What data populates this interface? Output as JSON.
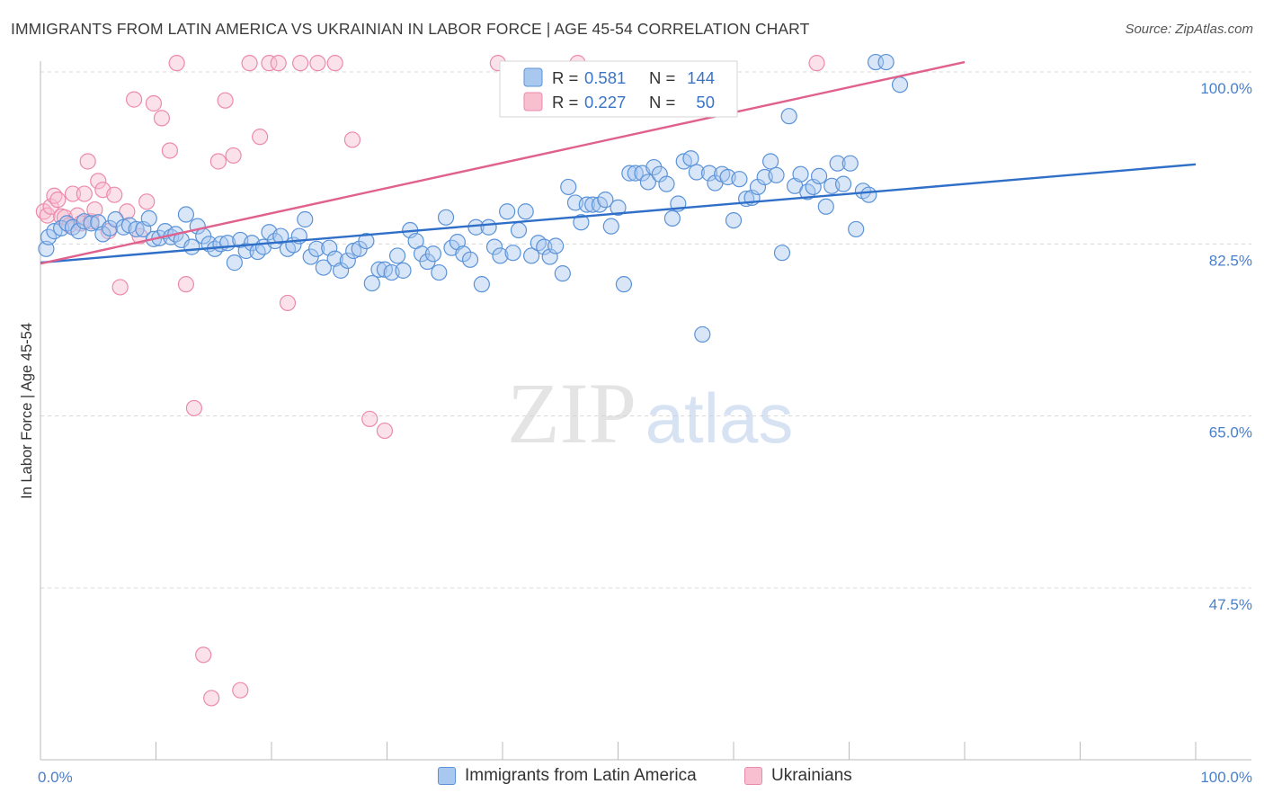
{
  "title": "IMMIGRANTS FROM LATIN AMERICA VS UKRAINIAN IN LABOR FORCE | AGE 45-54 CORRELATION CHART",
  "source": "Source: ZipAtlas.com",
  "watermark": {
    "zip": "ZIP",
    "atlas": "atlas"
  },
  "colors": {
    "blue_fill": "#a9c8f0",
    "blue_stroke": "#5b93d8",
    "blue_line": "#2f6fc8",
    "pink_fill": "#f7bfd0",
    "pink_stroke": "#ec8aab",
    "pink_line": "#e0608e",
    "tick_label": "#4a7fcc",
    "grid": "#d8d8d8",
    "axis": "#bbbbbb"
  },
  "stats_box": {
    "rows": [
      {
        "r_label": "R =",
        "r_value": "0.581",
        "n_label": "N =",
        "n_value": "144"
      },
      {
        "r_label": "R =",
        "r_value": "0.227",
        "n_label": "N =",
        "n_value": "50"
      }
    ]
  },
  "legend": {
    "items": [
      {
        "label": "Immigrants from Latin America"
      },
      {
        "label": "Ukrainians"
      }
    ]
  },
  "chart_data": {
    "type": "scatter",
    "title": "IMMIGRANTS FROM LATIN AMERICA VS UKRAINIAN IN LABOR FORCE | AGE 45-54 CORRELATION CHART",
    "xlabel": "",
    "ylabel": "In Labor Force | Age 45-54",
    "xlim": [
      0,
      100
    ],
    "ylim": [
      30,
      102
    ],
    "x_tick_labels": [
      "0.0%",
      "100.0%"
    ],
    "y_ticks": [
      47.5,
      65.0,
      82.5,
      100.0
    ],
    "y_tick_labels": [
      "47.5%",
      "65.0%",
      "82.5%",
      "100.0%"
    ],
    "grid": true,
    "legend_position": "bottom-center",
    "series": [
      {
        "name": "Immigrants from Latin America",
        "color": "#a9c8f0",
        "r": 0.581,
        "n": 144,
        "trend": {
          "x": [
            0,
            100
          ],
          "y": [
            80.6,
            90.6
          ]
        },
        "points": [
          [
            0.5,
            82.0
          ],
          [
            0.7,
            83.2
          ],
          [
            1.2,
            83.8
          ],
          [
            1.8,
            84.1
          ],
          [
            2.3,
            84.6
          ],
          [
            2.8,
            84.2
          ],
          [
            3.3,
            83.8
          ],
          [
            3.8,
            84.8
          ],
          [
            4.4,
            84.6
          ],
          [
            5.0,
            84.7
          ],
          [
            5.4,
            83.5
          ],
          [
            6.0,
            84.1
          ],
          [
            6.5,
            85.0
          ],
          [
            7.2,
            84.2
          ],
          [
            7.7,
            84.4
          ],
          [
            8.3,
            84.0
          ],
          [
            8.9,
            84.0
          ],
          [
            9.4,
            85.1
          ],
          [
            9.8,
            83.0
          ],
          [
            10.3,
            83.1
          ],
          [
            10.8,
            83.8
          ],
          [
            11.3,
            83.2
          ],
          [
            11.7,
            83.5
          ],
          [
            12.2,
            82.9
          ],
          [
            12.6,
            85.5
          ],
          [
            13.1,
            82.2
          ],
          [
            13.6,
            84.3
          ],
          [
            14.1,
            83.3
          ],
          [
            14.6,
            82.5
          ],
          [
            15.1,
            82.0
          ],
          [
            15.6,
            82.5
          ],
          [
            16.2,
            82.6
          ],
          [
            16.8,
            80.6
          ],
          [
            17.3,
            82.9
          ],
          [
            17.8,
            81.8
          ],
          [
            18.3,
            82.6
          ],
          [
            18.8,
            81.7
          ],
          [
            19.3,
            82.2
          ],
          [
            19.8,
            83.7
          ],
          [
            20.3,
            82.8
          ],
          [
            20.8,
            83.3
          ],
          [
            21.4,
            82.0
          ],
          [
            21.9,
            82.4
          ],
          [
            22.4,
            83.3
          ],
          [
            22.9,
            85.0
          ],
          [
            23.4,
            81.2
          ],
          [
            23.9,
            82.0
          ],
          [
            24.5,
            80.1
          ],
          [
            25.0,
            82.1
          ],
          [
            25.5,
            81.0
          ],
          [
            26.0,
            79.8
          ],
          [
            26.6,
            80.8
          ],
          [
            27.1,
            81.8
          ],
          [
            27.6,
            82.0
          ],
          [
            28.2,
            82.8
          ],
          [
            28.7,
            78.5
          ],
          [
            29.3,
            79.9
          ],
          [
            29.8,
            79.9
          ],
          [
            30.4,
            79.6
          ],
          [
            30.9,
            81.3
          ],
          [
            31.4,
            79.8
          ],
          [
            32.0,
            83.9
          ],
          [
            32.5,
            82.8
          ],
          [
            33.0,
            81.5
          ],
          [
            33.5,
            80.7
          ],
          [
            34.0,
            81.5
          ],
          [
            34.5,
            79.6
          ],
          [
            35.1,
            85.2
          ],
          [
            35.6,
            82.1
          ],
          [
            36.1,
            82.7
          ],
          [
            36.6,
            81.5
          ],
          [
            37.2,
            80.9
          ],
          [
            37.7,
            84.2
          ],
          [
            38.2,
            78.4
          ],
          [
            38.8,
            84.2
          ],
          [
            39.3,
            82.2
          ],
          [
            39.8,
            81.3
          ],
          [
            40.4,
            85.8
          ],
          [
            40.9,
            81.6
          ],
          [
            41.4,
            83.9
          ],
          [
            42.0,
            85.8
          ],
          [
            42.5,
            81.3
          ],
          [
            43.1,
            82.6
          ],
          [
            43.6,
            82.2
          ],
          [
            44.1,
            81.2
          ],
          [
            44.6,
            82.3
          ],
          [
            45.2,
            79.5
          ],
          [
            45.7,
            88.3
          ],
          [
            46.3,
            86.7
          ],
          [
            46.8,
            84.7
          ],
          [
            47.3,
            86.5
          ],
          [
            47.8,
            86.5
          ],
          [
            48.4,
            86.5
          ],
          [
            48.9,
            87.0
          ],
          [
            49.4,
            84.3
          ],
          [
            50.0,
            86.2
          ],
          [
            50.5,
            78.4
          ],
          [
            51.0,
            89.7
          ],
          [
            51.5,
            89.7
          ],
          [
            52.1,
            89.7
          ],
          [
            52.6,
            88.8
          ],
          [
            53.1,
            90.3
          ],
          [
            53.6,
            89.6
          ],
          [
            54.2,
            88.6
          ],
          [
            54.7,
            85.1
          ],
          [
            55.2,
            86.6
          ],
          [
            55.7,
            90.9
          ],
          [
            56.3,
            91.2
          ],
          [
            56.8,
            89.8
          ],
          [
            57.3,
            73.3
          ],
          [
            57.9,
            89.7
          ],
          [
            58.4,
            88.7
          ],
          [
            59.0,
            89.6
          ],
          [
            59.5,
            89.3
          ],
          [
            60.0,
            84.9
          ],
          [
            60.5,
            89.1
          ],
          [
            61.1,
            87.1
          ],
          [
            61.6,
            87.2
          ],
          [
            62.1,
            88.3
          ],
          [
            62.7,
            89.3
          ],
          [
            63.2,
            90.9
          ],
          [
            63.7,
            89.5
          ],
          [
            64.2,
            81.6
          ],
          [
            64.8,
            95.5
          ],
          [
            65.3,
            88.4
          ],
          [
            65.8,
            89.6
          ],
          [
            66.4,
            87.8
          ],
          [
            66.9,
            88.3
          ],
          [
            67.4,
            89.4
          ],
          [
            68.0,
            86.3
          ],
          [
            68.5,
            88.4
          ],
          [
            69.0,
            90.7
          ],
          [
            69.5,
            88.6
          ],
          [
            70.1,
            90.7
          ],
          [
            70.6,
            84.0
          ],
          [
            71.2,
            87.9
          ],
          [
            71.7,
            87.5
          ],
          [
            72.3,
            101.0
          ],
          [
            73.2,
            101.0
          ],
          [
            74.4,
            98.7
          ]
        ]
      },
      {
        "name": "Ukrainians",
        "color": "#f7bfd0",
        "r": 0.227,
        "n": 50,
        "trend": {
          "x": [
            0,
            80
          ],
          "y": [
            80.5,
            101.0
          ]
        },
        "points": [
          [
            0.3,
            85.8
          ],
          [
            0.6,
            85.4
          ],
          [
            0.9,
            86.3
          ],
          [
            1.2,
            87.4
          ],
          [
            1.5,
            87.0
          ],
          [
            1.8,
            85.3
          ],
          [
            2.1,
            85.2
          ],
          [
            2.5,
            84.4
          ],
          [
            2.8,
            87.6
          ],
          [
            3.2,
            85.4
          ],
          [
            3.5,
            84.6
          ],
          [
            3.8,
            87.6
          ],
          [
            4.1,
            90.9
          ],
          [
            4.4,
            84.8
          ],
          [
            4.7,
            86.0
          ],
          [
            5.0,
            88.9
          ],
          [
            5.4,
            88.0
          ],
          [
            5.9,
            83.8
          ],
          [
            6.4,
            87.5
          ],
          [
            6.9,
            78.1
          ],
          [
            7.5,
            85.8
          ],
          [
            8.1,
            97.2
          ],
          [
            8.6,
            83.3
          ],
          [
            9.2,
            86.8
          ],
          [
            9.8,
            96.8
          ],
          [
            10.5,
            95.3
          ],
          [
            11.2,
            92.0
          ],
          [
            11.8,
            100.9
          ],
          [
            12.6,
            78.4
          ],
          [
            13.3,
            65.8
          ],
          [
            14.1,
            40.7
          ],
          [
            14.8,
            36.3
          ],
          [
            15.4,
            90.9
          ],
          [
            16.0,
            97.1
          ],
          [
            16.7,
            91.5
          ],
          [
            17.3,
            37.1
          ],
          [
            18.1,
            100.9
          ],
          [
            19.0,
            93.4
          ],
          [
            19.8,
            100.9
          ],
          [
            20.6,
            100.9
          ],
          [
            21.4,
            76.5
          ],
          [
            22.5,
            100.9
          ],
          [
            24.0,
            100.9
          ],
          [
            25.5,
            100.9
          ],
          [
            27.0,
            93.1
          ],
          [
            28.5,
            64.7
          ],
          [
            29.8,
            63.5
          ],
          [
            39.6,
            100.9
          ],
          [
            46.5,
            100.9
          ],
          [
            67.2,
            100.9
          ]
        ]
      }
    ]
  }
}
